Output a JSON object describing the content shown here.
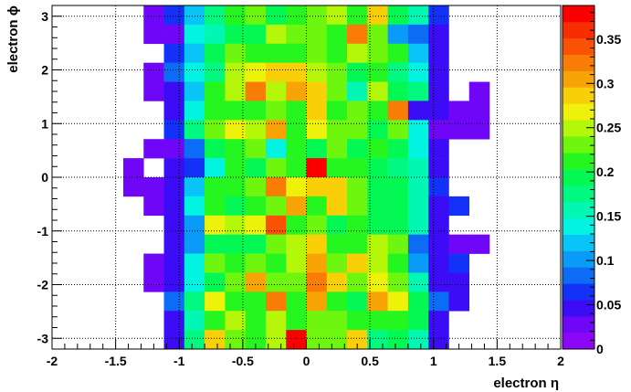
{
  "chart_data": {
    "type": "heatmap",
    "xlabel": "electron η",
    "ylabel": "electron ϕ",
    "xlim": [
      -2,
      2
    ],
    "ylim": [
      -3.2,
      3.2
    ],
    "grid": true,
    "x_ticks": [
      {
        "v": -2,
        "label": "-2"
      },
      {
        "v": -1.5,
        "label": "-1.5"
      },
      {
        "v": -1,
        "label": "-1"
      },
      {
        "v": -0.5,
        "label": "-0.5"
      },
      {
        "v": 0,
        "label": "0"
      },
      {
        "v": 0.5,
        "label": "0.5"
      },
      {
        "v": 1,
        "label": "1"
      },
      {
        "v": 1.5,
        "label": "1.5"
      },
      {
        "v": 2,
        "label": "2"
      }
    ],
    "y_ticks": [
      {
        "v": -3,
        "label": "-3"
      },
      {
        "v": -2,
        "label": "-2"
      },
      {
        "v": -1,
        "label": "-1"
      },
      {
        "v": 0,
        "label": "0"
      },
      {
        "v": 1,
        "label": "1"
      },
      {
        "v": 2,
        "label": "2"
      },
      {
        "v": 3,
        "label": "3"
      }
    ],
    "x_bin_edges": [
      -1.6,
      1.6
    ],
    "x_bins": 20,
    "y_bin_edges": [
      -3.2,
      3.2
    ],
    "y_bins": 18,
    "z_range": [
      0,
      0.388
    ],
    "colorbar_ticks": [
      {
        "v": 0,
        "label": "0"
      },
      {
        "v": 0.05,
        "label": "0.05"
      },
      {
        "v": 0.1,
        "label": "0.1"
      },
      {
        "v": 0.15,
        "label": "0.15"
      },
      {
        "v": 0.2,
        "label": "0.2"
      },
      {
        "v": 0.25,
        "label": "0.25"
      },
      {
        "v": 0.3,
        "label": "0.3"
      },
      {
        "v": 0.35,
        "label": "0.35"
      }
    ],
    "colorbar_colors": [
      "#8c06f8",
      "#7006f8",
      "#3c0cf6",
      "#1431f7",
      "#0d6cf5",
      "#0a9af7",
      "#08c4f7",
      "#03f3e3",
      "#02f7b4",
      "#01f881",
      "#03f854",
      "#25f61f",
      "#6ff60e",
      "#b4f708",
      "#eef20a",
      "#f9d007",
      "#f8a406",
      "#f87c05",
      "#f95205",
      "#f92d02",
      "#fa0000"
    ],
    "values_top_row_first": [
      [
        0,
        0,
        0.02,
        0.06,
        0.12,
        0.18,
        0.22,
        0.24,
        0.2,
        0.22,
        0.23,
        0.25,
        0.22,
        0.28,
        0.2,
        0.16,
        0.06,
        0,
        0,
        0
      ],
      [
        0,
        0,
        0.02,
        0.02,
        0.14,
        0.16,
        0.2,
        0.19,
        0.25,
        0.23,
        0.24,
        0.22,
        0.33,
        0.24,
        0.1,
        0.08,
        0.04,
        0,
        0,
        0
      ],
      [
        0,
        0,
        0,
        0.06,
        0.12,
        0.2,
        0.23,
        0.22,
        0.21,
        0.22,
        0.23,
        0.22,
        0.25,
        0.24,
        0.22,
        0.12,
        0.04,
        0,
        0,
        0
      ],
      [
        0,
        0,
        0.02,
        0.09,
        0.13,
        0.18,
        0.25,
        0.26,
        0.29,
        0.29,
        0.25,
        0.23,
        0.2,
        0.21,
        0.18,
        0.14,
        0.04,
        0,
        0,
        0
      ],
      [
        0,
        0,
        0.02,
        0.04,
        0.12,
        0.21,
        0.25,
        0.33,
        0.25,
        0.31,
        0.29,
        0.23,
        0.16,
        0.25,
        0.2,
        0.18,
        0.04,
        0,
        0.02,
        0
      ],
      [
        0,
        0,
        0,
        0.04,
        0.14,
        0.21,
        0.22,
        0.22,
        0.23,
        0.22,
        0.29,
        0.22,
        0.24,
        0.21,
        0.33,
        0.04,
        0.04,
        0.02,
        0.02,
        0
      ],
      [
        0,
        0,
        0,
        0.06,
        0.18,
        0.23,
        0.27,
        0.25,
        0.31,
        0.22,
        0.26,
        0.24,
        0.23,
        0.2,
        0.23,
        0.14,
        0.02,
        0.02,
        0.02,
        0
      ],
      [
        0,
        0,
        0.02,
        0.02,
        0.08,
        0.19,
        0.22,
        0.24,
        0.13,
        0.22,
        0.2,
        0.23,
        0.2,
        0.21,
        0.2,
        0.14,
        0.04,
        0,
        0,
        0
      ],
      [
        0,
        0.02,
        0,
        0.04,
        0.07,
        0.14,
        0.22,
        0.19,
        0.24,
        0.22,
        0.39,
        0.22,
        0.22,
        0.2,
        0.18,
        0.16,
        0.04,
        0,
        0,
        0
      ],
      [
        0,
        0.02,
        0.02,
        0.04,
        0.12,
        0.22,
        0.21,
        0.23,
        0.33,
        0.26,
        0.29,
        0.28,
        0.23,
        0.2,
        0.2,
        0.16,
        0.06,
        0,
        0,
        0
      ],
      [
        0,
        0,
        0.02,
        0.04,
        0.13,
        0.21,
        0.19,
        0.21,
        0.23,
        0.31,
        0.22,
        0.29,
        0.23,
        0.19,
        0.19,
        0.16,
        0.04,
        0.06,
        0,
        0
      ],
      [
        0,
        0,
        0,
        0.04,
        0.1,
        0.26,
        0.25,
        0.26,
        0.35,
        0.21,
        0.23,
        0.2,
        0.21,
        0.2,
        0.19,
        0.16,
        0.04,
        0,
        0,
        0
      ],
      [
        0,
        0,
        0,
        0.04,
        0.1,
        0.2,
        0.2,
        0.19,
        0.23,
        0.25,
        0.29,
        0.21,
        0.22,
        0.25,
        0.24,
        0.08,
        0.04,
        0.02,
        0.02,
        0
      ],
      [
        0,
        0,
        0.02,
        0.04,
        0.13,
        0.24,
        0.22,
        0.24,
        0.22,
        0.25,
        0.31,
        0.24,
        0.28,
        0.25,
        0.22,
        0.1,
        0.04,
        0.06,
        0,
        0
      ],
      [
        0,
        0,
        0.02,
        0.04,
        0.14,
        0.2,
        0.23,
        0.3,
        0.24,
        0.23,
        0.33,
        0.29,
        0.23,
        0.26,
        0.23,
        0.16,
        0.04,
        0.04,
        0,
        0
      ],
      [
        0,
        0,
        0,
        0.08,
        0.18,
        0.26,
        0.21,
        0.22,
        0.33,
        0.22,
        0.3,
        0.21,
        0.2,
        0.31,
        0.26,
        0.2,
        0.08,
        0.04,
        0,
        0
      ],
      [
        0,
        0,
        0,
        0.04,
        0.16,
        0.22,
        0.25,
        0.22,
        0.25,
        0.22,
        0.24,
        0.24,
        0.22,
        0.21,
        0.22,
        0.19,
        0.04,
        0,
        0,
        0
      ],
      [
        0,
        0,
        0,
        0.04,
        0.17,
        0.28,
        0.23,
        0.22,
        0.25,
        0.38,
        0.24,
        0.23,
        0.29,
        0.18,
        0.2,
        0.16,
        0.04,
        0,
        0,
        0
      ]
    ]
  }
}
